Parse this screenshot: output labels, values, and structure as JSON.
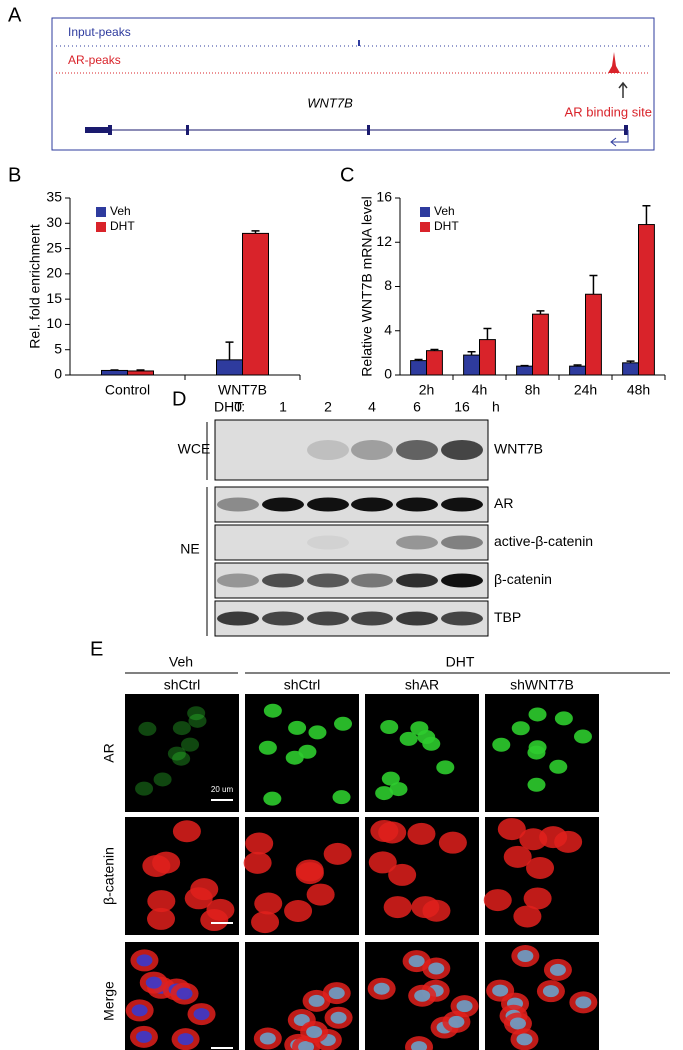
{
  "panel_labels": [
    "A",
    "B",
    "C",
    "D",
    "E"
  ],
  "track": {
    "input_label": "Input-peaks",
    "ar_label": "AR-peaks",
    "gene": "WNT7B",
    "site_label": "AR binding site"
  },
  "chart_data": [
    {
      "type": "bar",
      "ylabel": "Rel. fold enrichment",
      "categories": [
        "Control",
        "WNT7B"
      ],
      "series": [
        {
          "name": "Veh",
          "color": "#2e3b9e",
          "values": [
            0.9,
            3.0
          ],
          "errors": [
            0.1,
            3.5
          ]
        },
        {
          "name": "DHT",
          "color": "#d9232a",
          "values": [
            0.8,
            28.0
          ],
          "errors": [
            0.2,
            0.5
          ]
        }
      ],
      "ylim": [
        0,
        35
      ],
      "yticks": [
        0,
        5,
        10,
        15,
        20,
        25,
        30,
        35
      ]
    },
    {
      "type": "bar",
      "ylabel": "Relative WNT7B mRNA level",
      "categories": [
        "2h",
        "4h",
        "8h",
        "24h",
        "48h"
      ],
      "series": [
        {
          "name": "Veh",
          "color": "#2e3b9e",
          "values": [
            1.3,
            1.8,
            0.8,
            0.8,
            1.1
          ],
          "errors": [
            0.1,
            0.3,
            0.05,
            0.1,
            0.15
          ]
        },
        {
          "name": "DHT",
          "color": "#d9232a",
          "values": [
            2.2,
            3.2,
            5.5,
            7.3,
            13.6
          ],
          "errors": [
            0.1,
            1.0,
            0.3,
            1.7,
            1.7
          ]
        }
      ],
      "ylim": [
        0,
        16
      ],
      "yticks": [
        0,
        4,
        8,
        12,
        16
      ]
    }
  ],
  "blot": {
    "treatment": "DHT:",
    "times": [
      "0",
      "1",
      "2",
      "4",
      "6",
      "16"
    ],
    "unit": "h",
    "fractions": [
      "WCE",
      "NE"
    ],
    "bands": [
      "WNT7B",
      "AR",
      "active-β-catenin",
      "β-catenin",
      "TBP"
    ]
  },
  "microscopy": {
    "groups": [
      "Veh",
      "DHT"
    ],
    "columns": [
      "shCtrl",
      "shCtrl",
      "shAR",
      "shWNT7B"
    ],
    "rows": [
      "AR",
      "β-catenin",
      "Merge"
    ],
    "scale": "20 um"
  }
}
